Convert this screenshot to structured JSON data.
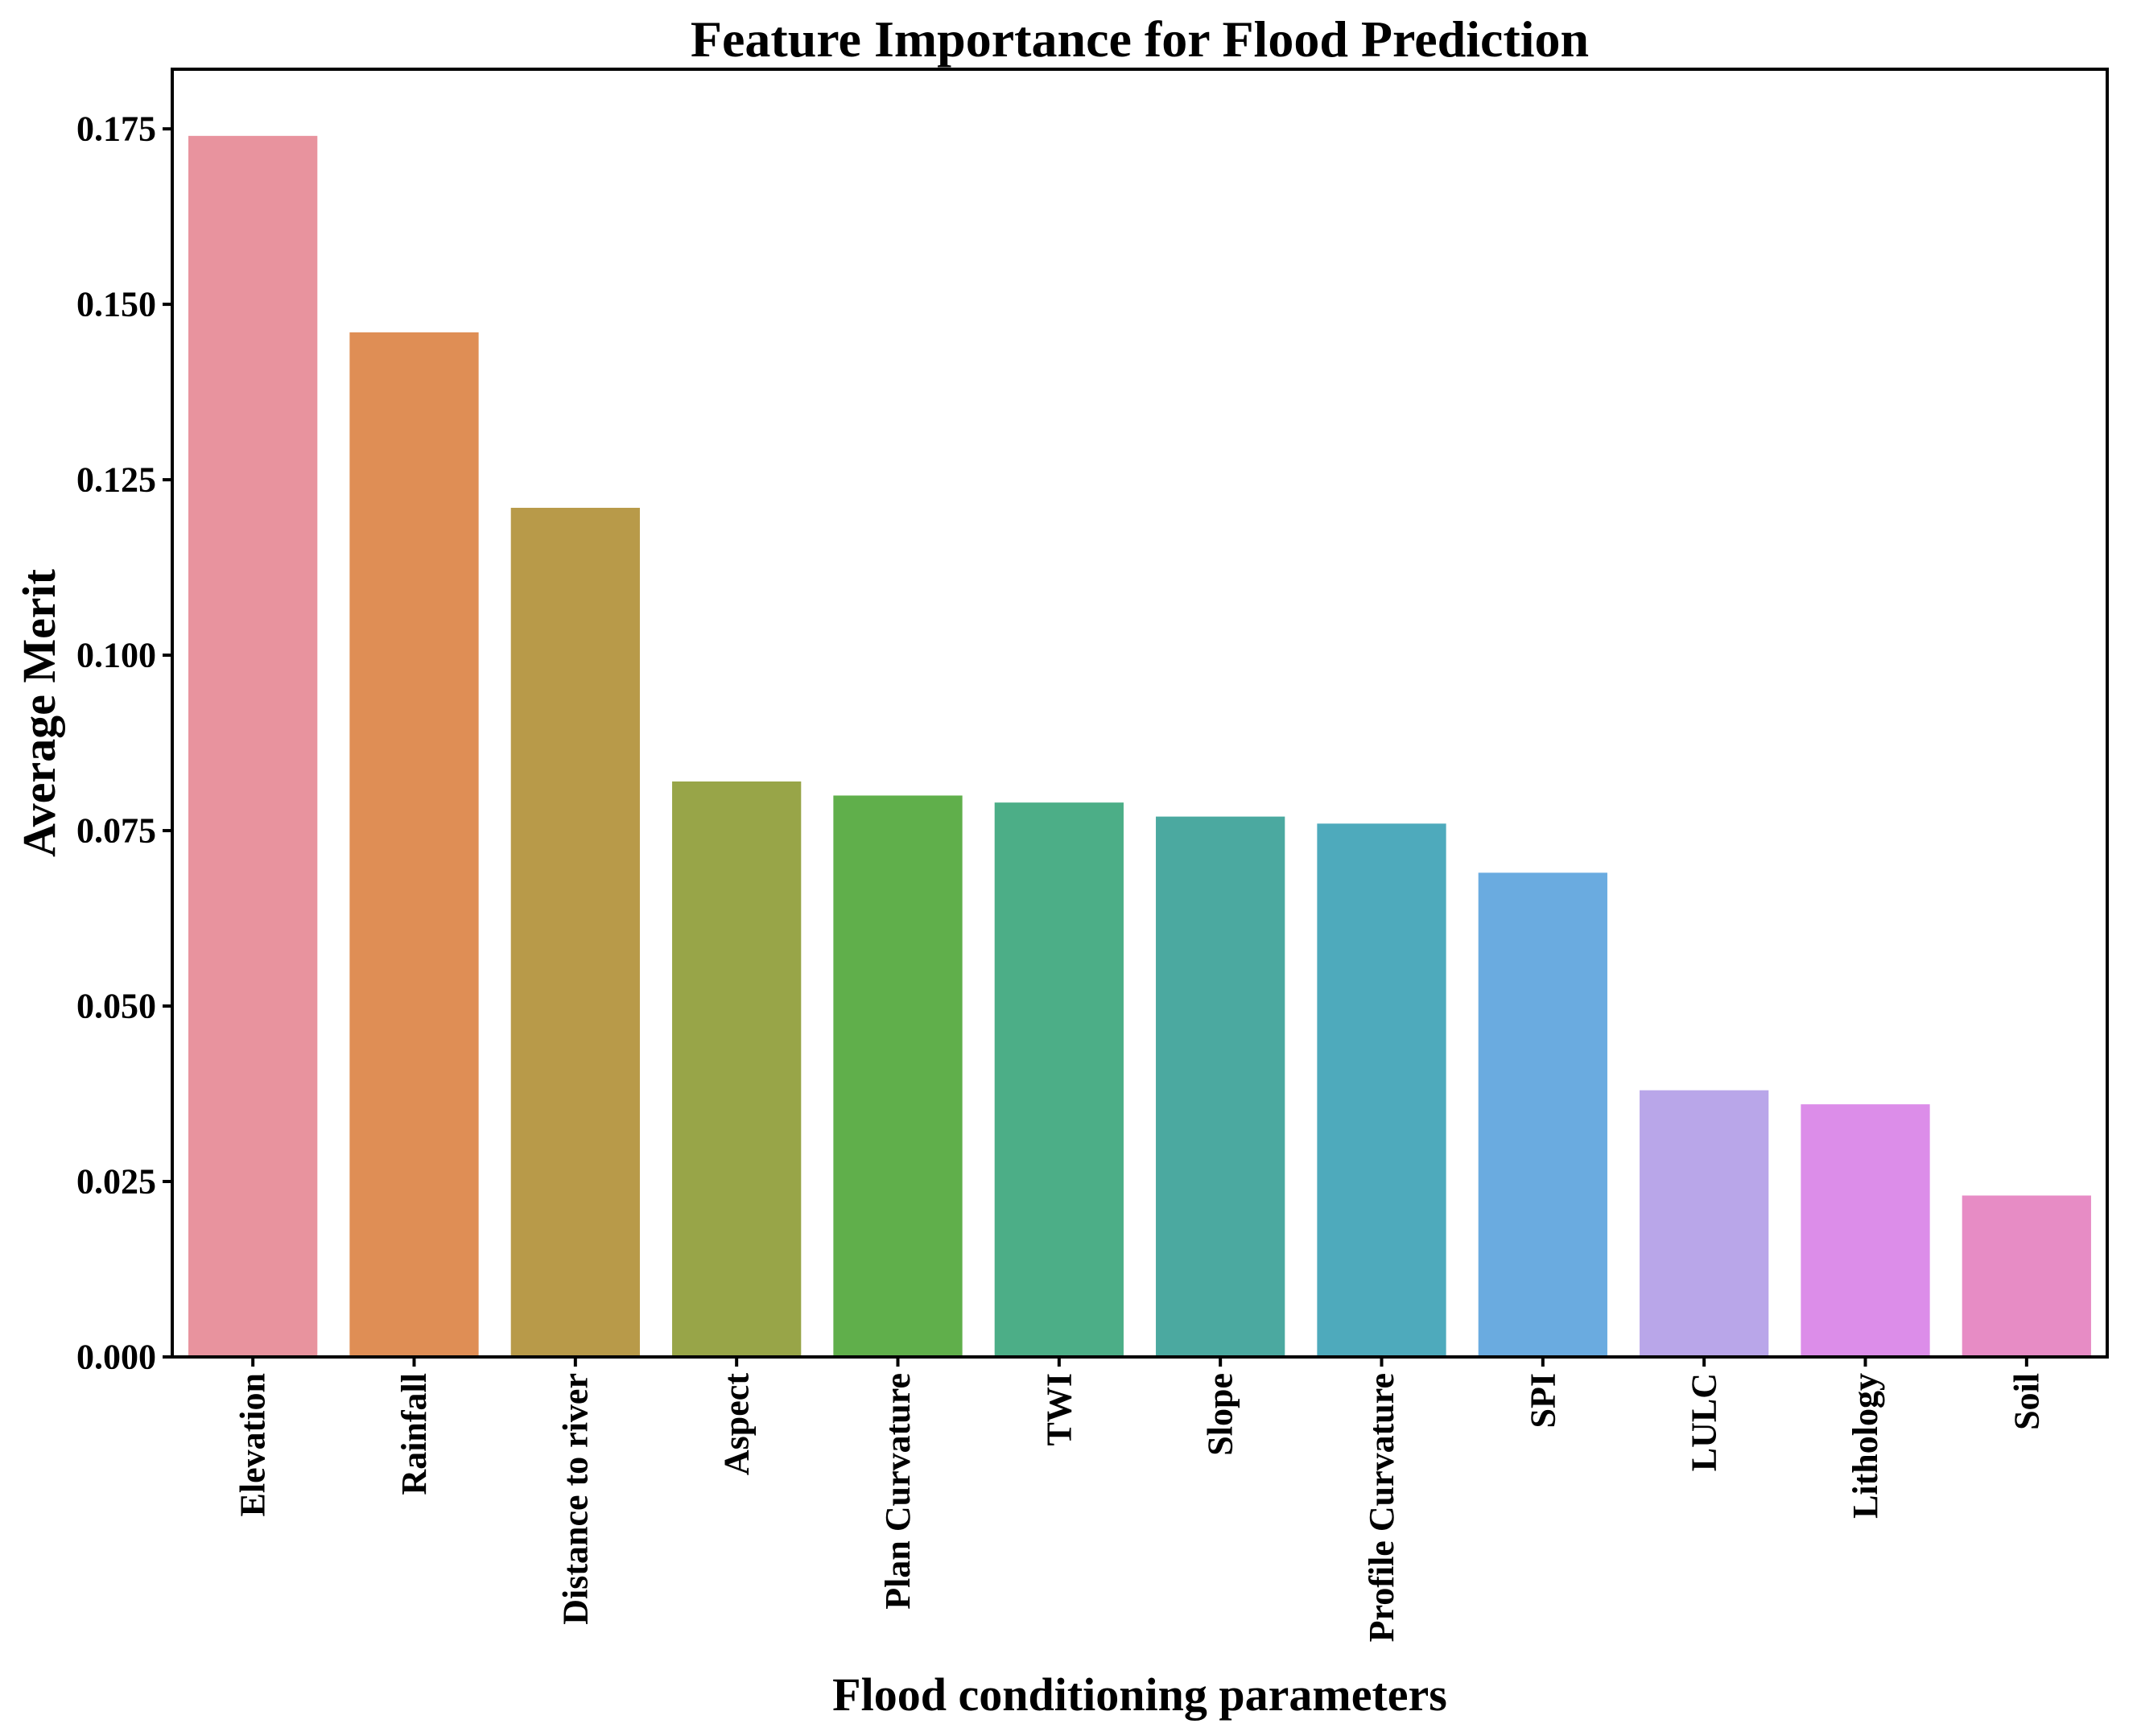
{
  "chart_data": {
    "type": "bar",
    "title": "Feature Importance for Flood Prediction",
    "xlabel": "Flood conditioning parameters",
    "ylabel": "Average Merit",
    "ylim": [
      0,
      0.1835
    ],
    "yticks": [
      "0.000",
      "0.025",
      "0.050",
      "0.075",
      "0.100",
      "0.125",
      "0.150",
      "0.175"
    ],
    "grid": false,
    "categories": [
      "Elevation",
      "Rainfall",
      "Distance to river",
      "Aspect",
      "Plan Curvature",
      "TWI",
      "Slope",
      "Profile Curvature",
      "SPI",
      "LULC",
      "Lithology",
      "Soil"
    ],
    "values": [
      0.174,
      0.146,
      0.121,
      0.082,
      0.08,
      0.079,
      0.077,
      0.076,
      0.069,
      0.038,
      0.036,
      0.023
    ],
    "colors": [
      "#e8939e",
      "#df8e55",
      "#b89a49",
      "#98a548",
      "#60af4b",
      "#4cae87",
      "#4ba9a0",
      "#4eaabc",
      "#6aabe0",
      "#b9a6e9",
      "#dc8de9",
      "#e78cc5"
    ]
  }
}
